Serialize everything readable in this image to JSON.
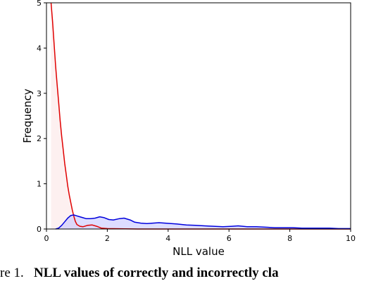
{
  "chart_data": {
    "type": "line",
    "title": "",
    "xlabel": "NLL value",
    "ylabel": "Frequency",
    "xlim": [
      0,
      10
    ],
    "ylim": [
      0,
      5
    ],
    "x_ticks": [
      0,
      2,
      4,
      6,
      8,
      10
    ],
    "y_ticks": [
      0,
      1,
      2,
      3,
      4,
      5
    ],
    "grid": false,
    "legend": "none",
    "series": [
      {
        "color": "#e00000",
        "fill": "#fbe6e6",
        "points": [
          [
            0.15,
            5.0
          ],
          [
            0.2,
            4.6
          ],
          [
            0.25,
            4.1
          ],
          [
            0.3,
            3.6
          ],
          [
            0.35,
            3.2
          ],
          [
            0.4,
            2.8
          ],
          [
            0.45,
            2.4
          ],
          [
            0.5,
            2.05
          ],
          [
            0.55,
            1.75
          ],
          [
            0.6,
            1.45
          ],
          [
            0.65,
            1.2
          ],
          [
            0.7,
            0.95
          ],
          [
            0.75,
            0.75
          ],
          [
            0.8,
            0.58
          ],
          [
            0.85,
            0.42
          ],
          [
            0.9,
            0.28
          ],
          [
            0.95,
            0.17
          ],
          [
            1.0,
            0.1
          ],
          [
            1.1,
            0.06
          ],
          [
            1.2,
            0.05
          ],
          [
            1.35,
            0.08
          ],
          [
            1.5,
            0.09
          ],
          [
            1.65,
            0.06
          ],
          [
            1.8,
            0.02
          ],
          [
            2.0,
            0.01
          ],
          [
            3.0,
            0.0
          ],
          [
            10.0,
            0.0
          ]
        ]
      },
      {
        "color": "#0000dd",
        "fill": "#c7c7ff",
        "points": [
          [
            0.3,
            0.0
          ],
          [
            0.4,
            0.02
          ],
          [
            0.5,
            0.08
          ],
          [
            0.6,
            0.16
          ],
          [
            0.7,
            0.24
          ],
          [
            0.8,
            0.3
          ],
          [
            0.9,
            0.31
          ],
          [
            1.0,
            0.29
          ],
          [
            1.1,
            0.27
          ],
          [
            1.2,
            0.25
          ],
          [
            1.3,
            0.23
          ],
          [
            1.45,
            0.23
          ],
          [
            1.6,
            0.24
          ],
          [
            1.75,
            0.27
          ],
          [
            1.9,
            0.25
          ],
          [
            2.05,
            0.21
          ],
          [
            2.2,
            0.2
          ],
          [
            2.4,
            0.23
          ],
          [
            2.55,
            0.24
          ],
          [
            2.75,
            0.2
          ],
          [
            2.9,
            0.15
          ],
          [
            3.1,
            0.13
          ],
          [
            3.3,
            0.12
          ],
          [
            3.5,
            0.13
          ],
          [
            3.7,
            0.14
          ],
          [
            3.9,
            0.13
          ],
          [
            4.1,
            0.12
          ],
          [
            4.3,
            0.11
          ],
          [
            4.6,
            0.09
          ],
          [
            4.9,
            0.08
          ],
          [
            5.2,
            0.07
          ],
          [
            5.5,
            0.06
          ],
          [
            5.8,
            0.05
          ],
          [
            6.1,
            0.06
          ],
          [
            6.3,
            0.07
          ],
          [
            6.6,
            0.05
          ],
          [
            6.9,
            0.05
          ],
          [
            7.2,
            0.04
          ],
          [
            7.5,
            0.03
          ],
          [
            7.8,
            0.03
          ],
          [
            8.1,
            0.03
          ],
          [
            8.4,
            0.02
          ],
          [
            8.7,
            0.02
          ],
          [
            9.0,
            0.02
          ],
          [
            9.3,
            0.02
          ],
          [
            9.6,
            0.01
          ],
          [
            10.0,
            0.01
          ]
        ]
      }
    ]
  },
  "caption": {
    "prefix": "re 1.",
    "bold": "NLL values of correctly and incorrectly cla"
  }
}
